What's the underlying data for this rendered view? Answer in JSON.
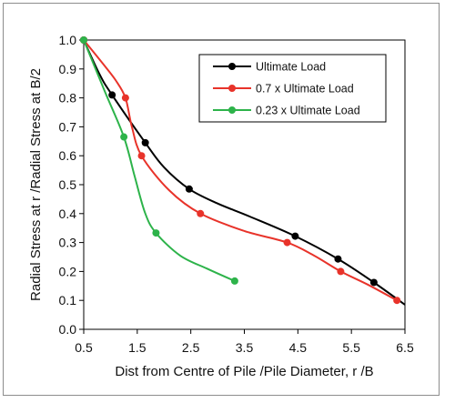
{
  "chart_data": {
    "type": "line",
    "title": "",
    "xlabel": "Dist from Centre of Pile /Pile Diameter, r /B",
    "ylabel": "Radial Stress at r /Radial Stress at B/2",
    "xlim": [
      0.5,
      6.5
    ],
    "ylim": [
      0.0,
      1.0
    ],
    "xticks": [
      "0.5",
      "1.5",
      "2.5",
      "3.5",
      "4.5",
      "5.5",
      "6.5"
    ],
    "yticks": [
      "0.0",
      "0.1",
      "0.2",
      "0.3",
      "0.4",
      "0.5",
      "0.6",
      "0.7",
      "0.8",
      "0.9",
      "1.0"
    ],
    "grid": false,
    "legend_position": "top-right",
    "series": [
      {
        "name": "Ultimate Load",
        "color": "#000000",
        "marked": [
          [
            0.5,
            1.0
          ],
          [
            1.03,
            0.81
          ],
          [
            1.65,
            0.645
          ],
          [
            2.47,
            0.485
          ],
          [
            4.45,
            0.322
          ],
          [
            5.25,
            0.243
          ],
          [
            5.92,
            0.162
          ]
        ],
        "line": [
          [
            0.5,
            1.0
          ],
          [
            0.8,
            0.88
          ],
          [
            1.03,
            0.81
          ],
          [
            1.65,
            0.645
          ],
          [
            2.0,
            0.56
          ],
          [
            2.47,
            0.485
          ],
          [
            3.0,
            0.435
          ],
          [
            3.6,
            0.39
          ],
          [
            4.45,
            0.322
          ],
          [
            5.25,
            0.243
          ],
          [
            5.92,
            0.162
          ],
          [
            6.5,
            0.085
          ]
        ]
      },
      {
        "name": "0.7 x Ultimate Load",
        "color": "#e8332a",
        "marked": [
          [
            0.5,
            1.0
          ],
          [
            1.28,
            0.8
          ],
          [
            1.58,
            0.6
          ],
          [
            2.68,
            0.4
          ],
          [
            4.3,
            0.3
          ],
          [
            5.3,
            0.2
          ],
          [
            6.35,
            0.1
          ]
        ],
        "line": [
          [
            0.5,
            1.0
          ],
          [
            0.85,
            0.92
          ],
          [
            1.1,
            0.86
          ],
          [
            1.28,
            0.8
          ],
          [
            1.4,
            0.7
          ],
          [
            1.58,
            0.6
          ],
          [
            2.1,
            0.48
          ],
          [
            2.68,
            0.4
          ],
          [
            3.5,
            0.34
          ],
          [
            4.3,
            0.3
          ],
          [
            4.8,
            0.255
          ],
          [
            5.3,
            0.2
          ],
          [
            5.8,
            0.155
          ],
          [
            6.35,
            0.1
          ]
        ]
      },
      {
        "name": "0.23 x Ultimate Load",
        "color": "#2db34a",
        "marked": [
          [
            0.5,
            1.0
          ],
          [
            1.25,
            0.665
          ],
          [
            1.85,
            0.333
          ],
          [
            3.32,
            0.167
          ]
        ],
        "line": [
          [
            0.5,
            1.0
          ],
          [
            0.9,
            0.82
          ],
          [
            1.25,
            0.665
          ],
          [
            1.45,
            0.53
          ],
          [
            1.65,
            0.4
          ],
          [
            1.85,
            0.333
          ],
          [
            2.3,
            0.255
          ],
          [
            2.8,
            0.21
          ],
          [
            3.32,
            0.167
          ]
        ]
      }
    ]
  }
}
